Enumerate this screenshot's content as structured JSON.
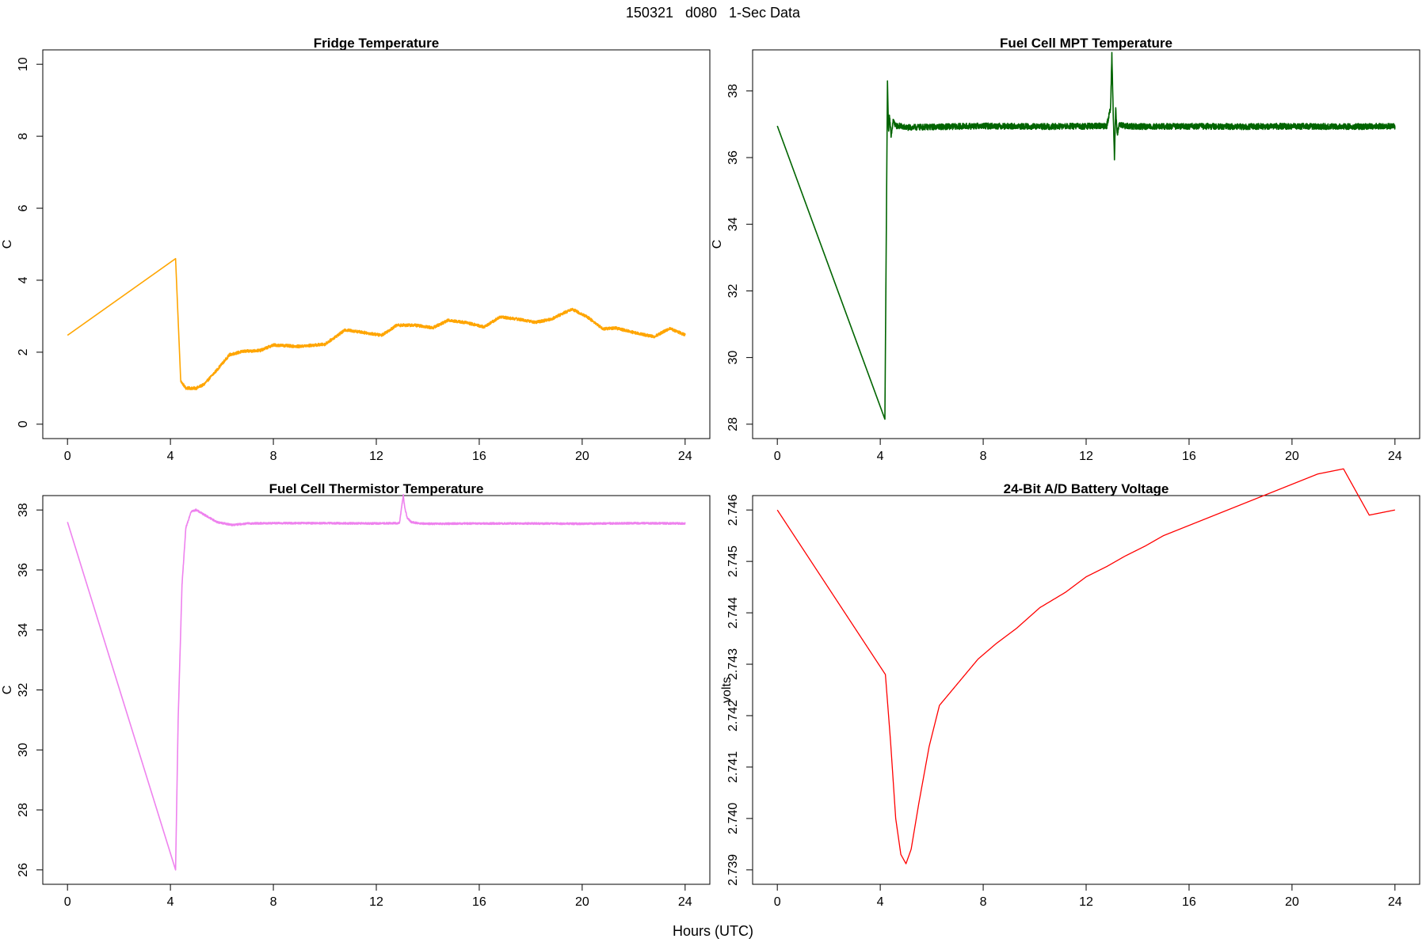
{
  "header": {
    "title": "150321   d080   1-Sec Data"
  },
  "footer": {
    "xlabel": "Hours (UTC)"
  },
  "chart_data": [
    {
      "id": "fridge",
      "type": "line",
      "title": "Fridge Temperature",
      "xlabel": "",
      "ylabel": "C",
      "color": "#FFA500",
      "xlim": [
        0,
        24
      ],
      "ylim": [
        0,
        10
      ],
      "xticks": [
        0,
        4,
        8,
        12,
        16,
        20,
        24
      ],
      "yticks": [
        0,
        2,
        4,
        6,
        8,
        10
      ],
      "ytick_labels": [
        "0",
        "2",
        "4",
        "6",
        "8",
        "10"
      ],
      "noise": 0.04,
      "x": [
        0,
        4.2,
        4.4,
        4.6,
        5.0,
        5.3,
        5.8,
        6.3,
        6.8,
        7.5,
        8.0,
        9.0,
        10.0,
        10.8,
        11.5,
        12.2,
        12.8,
        13.5,
        14.2,
        14.8,
        15.5,
        16.2,
        16.8,
        17.5,
        18.2,
        18.8,
        19.6,
        20.2,
        20.8,
        21.3,
        22.0,
        22.8,
        23.4,
        24.0
      ],
      "y": [
        2.47,
        4.6,
        1.2,
        1.0,
        1.0,
        1.1,
        1.5,
        1.93,
        2.02,
        2.05,
        2.2,
        2.16,
        2.22,
        2.62,
        2.55,
        2.47,
        2.75,
        2.75,
        2.68,
        2.89,
        2.82,
        2.7,
        2.98,
        2.92,
        2.83,
        2.92,
        3.2,
        2.98,
        2.65,
        2.67,
        2.55,
        2.43,
        2.66,
        2.48
      ]
    },
    {
      "id": "mpt",
      "type": "line",
      "title": "Fuel Cell MPT Temperature",
      "xlabel": "",
      "ylabel": "C",
      "color": "#006400",
      "xlim": [
        0,
        24
      ],
      "ylim": [
        28,
        38.8
      ],
      "xticks": [
        0,
        4,
        8,
        12,
        16,
        20,
        24
      ],
      "yticks": [
        28,
        30,
        32,
        34,
        36,
        38
      ],
      "ytick_labels": [
        "28",
        "30",
        "32",
        "34",
        "36",
        "38"
      ],
      "noise": 0.09,
      "x": [
        0,
        4.18,
        4.28,
        4.32,
        4.36,
        4.42,
        4.5,
        4.6,
        4.75,
        5.0,
        6.0,
        8.0,
        10.0,
        12.0,
        12.8,
        12.95,
        13.0,
        13.05,
        13.1,
        13.15,
        13.2,
        13.3,
        13.5,
        14.0,
        16.0,
        18.0,
        20.0,
        22.0,
        24.0
      ],
      "y": [
        36.95,
        28.15,
        38.3,
        36.8,
        37.3,
        36.6,
        37.1,
        36.95,
        36.95,
        36.9,
        36.92,
        36.95,
        36.93,
        36.94,
        36.95,
        37.5,
        39.1,
        37.4,
        36.0,
        37.5,
        36.7,
        37.0,
        36.95,
        36.93,
        36.94,
        36.93,
        36.94,
        36.93,
        36.94
      ]
    },
    {
      "id": "thermistor",
      "type": "line",
      "title": "Fuel Cell Thermistor Temperature",
      "xlabel": "",
      "ylabel": "C",
      "color": "#EE82EE",
      "xlim": [
        0,
        24
      ],
      "ylim": [
        26,
        38
      ],
      "xticks": [
        0,
        4,
        8,
        12,
        16,
        20,
        24
      ],
      "yticks": [
        26,
        28,
        30,
        32,
        34,
        36,
        38
      ],
      "ytick_labels": [
        "26",
        "28",
        "30",
        "32",
        "34",
        "36",
        "38"
      ],
      "noise": 0.03,
      "x": [
        0,
        4.2,
        4.3,
        4.45,
        4.6,
        4.8,
        5.0,
        5.3,
        5.8,
        6.4,
        7.0,
        8.0,
        10.0,
        12.0,
        12.9,
        13.0,
        13.05,
        13.1,
        13.2,
        13.35,
        13.6,
        14.0,
        16.0,
        18.0,
        20.0,
        22.0,
        24.0
      ],
      "y": [
        37.6,
        26.0,
        31.0,
        35.5,
        37.4,
        37.95,
        38.0,
        37.85,
        37.6,
        37.5,
        37.55,
        37.56,
        37.56,
        37.55,
        37.56,
        38.2,
        38.5,
        38.1,
        37.75,
        37.6,
        37.56,
        37.54,
        37.55,
        37.55,
        37.54,
        37.56,
        37.55
      ]
    },
    {
      "id": "battery",
      "type": "line",
      "title": "24-Bit A/D Battery Voltage",
      "xlabel": "",
      "ylabel": "volts",
      "color": "#FF0000",
      "xlim": [
        0,
        24
      ],
      "ylim": [
        2.739,
        2.746
      ],
      "xticks": [
        0,
        4,
        8,
        12,
        16,
        20,
        24
      ],
      "yticks": [
        2.739,
        2.74,
        2.741,
        2.742,
        2.743,
        2.744,
        2.745,
        2.746
      ],
      "ytick_labels": [
        "2.739",
        "2.740",
        "2.741",
        "2.742",
        "2.743",
        "2.744",
        "2.745",
        "2.746"
      ],
      "noise": 0,
      "x": [
        0,
        4.2,
        4.4,
        4.6,
        4.8,
        5.0,
        5.2,
        5.5,
        5.9,
        6.3,
        6.8,
        7.3,
        7.8,
        8.5,
        9.3,
        10.2,
        11.2,
        12.0,
        12.8,
        13.5,
        14.3,
        15.0,
        16.0,
        17.0,
        18.0,
        19.0,
        20.0,
        21.0,
        22.0,
        23.0,
        24.0
      ],
      "y": [
        2.746,
        2.7428,
        2.7415,
        2.74,
        2.7393,
        2.73912,
        2.7394,
        2.7403,
        2.7414,
        2.7422,
        2.7425,
        2.7428,
        2.7431,
        2.7434,
        2.7437,
        2.7441,
        2.7444,
        2.7447,
        2.7449,
        2.7451,
        2.7453,
        2.7455,
        2.7457,
        2.7459,
        2.7461,
        2.7463,
        2.7465,
        2.7467,
        2.7468,
        2.7459,
        2.746
      ]
    }
  ]
}
